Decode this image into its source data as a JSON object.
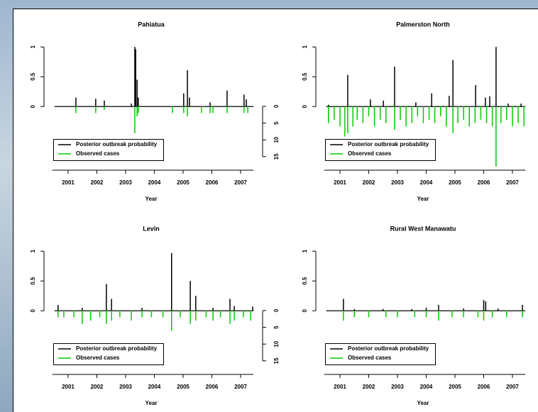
{
  "chart_data": [
    {
      "type": "spike",
      "title": "Pahiatua",
      "x_label": "Year",
      "legend": "bottomleft",
      "xlim": [
        2000.45,
        2007.45
      ],
      "xticks": [
        2001,
        2002,
        2003,
        2004,
        2005,
        2006,
        2007
      ],
      "ylim": [
        -1.02,
        1.05
      ],
      "yticks": [
        0,
        0.5,
        1
      ],
      "y2lim": [
        18.2,
        -18.6
      ],
      "y2ticks": [
        0,
        5,
        10,
        15
      ],
      "series": [
        {
          "name": "Posterior outbreak probability",
          "color": "#000000",
          "x": [
            2001.27,
            2001.96,
            2002.26,
            2003.2,
            2003.32,
            2003.35,
            2003.4,
            2003.44,
            2005.02,
            2005.15,
            2005.22,
            2005.94,
            2006.53,
            2007.12,
            2007.2
          ],
          "values": [
            0.15,
            0.13,
            0.1,
            0.05,
            1.0,
            0.96,
            0.45,
            0.15,
            0.22,
            0.61,
            0.15,
            0.07,
            0.27,
            0.2,
            0.12
          ]
        },
        {
          "name": "Observed cases",
          "color": "#00cc00",
          "axis": "y2",
          "x": [
            2001.27,
            2001.96,
            2002.26,
            2003.32,
            2003.4,
            2003.44,
            2004.63,
            2005.02,
            2005.15,
            2005.64,
            2005.94,
            2006.04,
            2006.53,
            2007.12,
            2007.25
          ],
          "values": [
            2,
            2,
            1,
            8,
            3,
            2,
            2,
            2,
            3,
            2,
            2,
            2,
            2,
            2,
            2
          ]
        }
      ]
    },
    {
      "type": "spike",
      "title": "Palmerston North",
      "x_label": "Year",
      "legend": "bottomleft",
      "xlim": [
        2000.45,
        2007.45
      ],
      "xticks": [
        2001,
        2002,
        2003,
        2004,
        2005,
        2006,
        2007
      ],
      "ylim": [
        -1.02,
        1.05
      ],
      "yticks": [
        0,
        0.5,
        1
      ],
      "y2lim": [
        18.2,
        -18.6
      ],
      "series": [
        {
          "name": "Posterior outbreak probability",
          "color": "#000000",
          "x": [
            2000.6,
            2001.27,
            2002.06,
            2002.51,
            2002.9,
            2003.64,
            2004.19,
            2004.8,
            2004.93,
            2005.72,
            2006.06,
            2006.21,
            2006.43,
            2006.85,
            2007.3
          ],
          "values": [
            0.03,
            0.53,
            0.12,
            0.1,
            0.67,
            0.07,
            0.22,
            0.18,
            0.78,
            0.36,
            0.15,
            0.17,
            1.0,
            0.05,
            0.05
          ]
        },
        {
          "name": "Observed cases",
          "color": "#00cc00",
          "axis": "y2",
          "x": [
            2000.6,
            2000.8,
            2001.0,
            2001.17,
            2001.27,
            2001.45,
            2001.6,
            2001.8,
            2002.0,
            2002.2,
            2002.4,
            2002.6,
            2002.9,
            2003.1,
            2003.3,
            2003.5,
            2003.7,
            2003.9,
            2004.1,
            2004.3,
            2004.5,
            2004.7,
            2004.93,
            2005.1,
            2005.3,
            2005.5,
            2005.7,
            2005.9,
            2006.1,
            2006.3,
            2006.43,
            2006.6,
            2006.8,
            2007.0,
            2007.2,
            2007.4
          ],
          "values": [
            5,
            4,
            6,
            9,
            8,
            6,
            4,
            5,
            3,
            6,
            4,
            5,
            7,
            4,
            6,
            5,
            3,
            5,
            4,
            5,
            3,
            6,
            8,
            5,
            4,
            6,
            5,
            4,
            5,
            6,
            18,
            5,
            4,
            6,
            5,
            6
          ]
        }
      ]
    },
    {
      "type": "spike",
      "title": "Levin",
      "x_label": "Year",
      "legend": "bottomleft",
      "xlim": [
        2000.45,
        2007.45
      ],
      "xticks": [
        2001,
        2002,
        2003,
        2004,
        2005,
        2006,
        2007
      ],
      "ylim": [
        -1.02,
        1.05
      ],
      "yticks": [
        0,
        0.5,
        1
      ],
      "y2lim": [
        18.2,
        -18.6
      ],
      "y2ticks": [
        0,
        5,
        10,
        15
      ],
      "series": [
        {
          "name": "Posterior outbreak probability",
          "color": "#000000",
          "x": [
            2000.65,
            2001.49,
            2002.33,
            2002.51,
            2003.57,
            2004.6,
            2005.25,
            2005.44,
            2006.04,
            2006.63,
            2006.78,
            2007.42
          ],
          "values": [
            0.1,
            0.05,
            0.45,
            0.2,
            0.05,
            0.97,
            0.5,
            0.25,
            0.05,
            0.2,
            0.08,
            0.07
          ]
        },
        {
          "name": "Observed cases",
          "color": "#00cc00",
          "axis": "y2",
          "x": [
            2000.65,
            2000.85,
            2001.2,
            2001.49,
            2001.78,
            2002.1,
            2002.33,
            2002.51,
            2002.8,
            2003.2,
            2003.57,
            2003.9,
            2004.3,
            2004.6,
            2004.9,
            2005.25,
            2005.44,
            2005.8,
            2006.04,
            2006.3,
            2006.63,
            2006.78,
            2007.1,
            2007.35
          ],
          "values": [
            2,
            2,
            2,
            4,
            3,
            2,
            4,
            3,
            2,
            3,
            2,
            2,
            2,
            6,
            2,
            4,
            3,
            2,
            3,
            2,
            4,
            3,
            2,
            3
          ]
        }
      ]
    },
    {
      "type": "spike",
      "title": "Rural West Manawatu",
      "x_label": "Year",
      "legend": "bottomleft",
      "xlim": [
        2000.45,
        2007.45
      ],
      "xticks": [
        2001,
        2002,
        2003,
        2004,
        2005,
        2006,
        2007
      ],
      "ylim": [
        -1.02,
        1.05
      ],
      "yticks": [
        0,
        0.5,
        1
      ],
      "y2lim": [
        18.2,
        -18.6
      ],
      "series": [
        {
          "name": "Posterior outbreak probability",
          "color": "#000000",
          "x": [
            2001.12,
            2001.5,
            2002.5,
            2003.5,
            2004.0,
            2004.43,
            2005.3,
            2006.0,
            2006.07,
            2006.5,
            2007.35
          ],
          "values": [
            0.2,
            0.03,
            0.03,
            0.03,
            0.05,
            0.1,
            0.04,
            0.18,
            0.16,
            0.04,
            0.1
          ]
        },
        {
          "name": "Observed cases",
          "color": "#00cc00",
          "axis": "y2",
          "x": [
            2001.12,
            2001.5,
            2002.0,
            2002.6,
            2003.0,
            2003.6,
            2004.0,
            2004.43,
            2004.9,
            2005.3,
            2005.8,
            2006.0,
            2006.3,
            2006.8,
            2007.35
          ],
          "values": [
            3,
            2,
            2,
            2,
            2,
            2,
            2,
            3,
            2,
            2,
            2,
            3,
            2,
            2,
            2
          ]
        }
      ]
    }
  ]
}
